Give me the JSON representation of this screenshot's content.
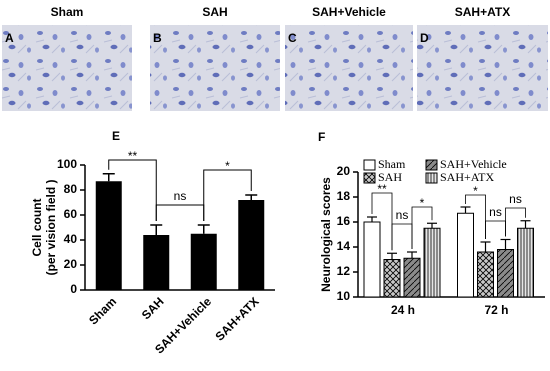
{
  "micrographs": [
    {
      "letter": "A",
      "title": "Sham"
    },
    {
      "letter": "B",
      "title": "SAH"
    },
    {
      "letter": "C",
      "title": "SAH+Vehicle"
    },
    {
      "letter": "D",
      "title": "SAH+ATX"
    }
  ],
  "chart_data": [
    {
      "type": "bar",
      "panel": "E",
      "ylabel": [
        "Cell count",
        "(per vision field )"
      ],
      "categories": [
        "Sham",
        "SAH",
        "SAH+Vehicle",
        "SAH+ATX"
      ],
      "values": [
        87,
        44,
        45,
        72
      ],
      "errors": [
        6,
        8,
        7,
        4
      ],
      "color": "#000000",
      "ylim": [
        0,
        100
      ],
      "yticks": [
        0,
        20,
        40,
        60,
        80,
        100
      ],
      "annotations": [
        "**",
        "ns",
        "*"
      ]
    },
    {
      "type": "grouped_bar",
      "panel": "F",
      "ylabel": "Neurological scores",
      "categories": [
        "24 h",
        "72 h"
      ],
      "series": [
        {
          "name": "Sham",
          "color": "#ffffff",
          "values": [
            16.0,
            16.7
          ],
          "errors": [
            0.4,
            0.5
          ]
        },
        {
          "name": "SAH",
          "color": "#c8c8c8",
          "values": [
            13.0,
            13.6
          ],
          "errors": [
            0.5,
            0.8
          ]
        },
        {
          "name": "SAH+Vehicle",
          "color": "#8a8a8a",
          "values": [
            13.1,
            13.8
          ],
          "errors": [
            0.5,
            0.8
          ]
        },
        {
          "name": "SAH+ATX",
          "color": "#e6e6e6",
          "values": [
            15.5,
            15.5
          ],
          "errors": [
            0.4,
            0.6
          ]
        }
      ],
      "ylim": [
        10,
        20
      ],
      "yticks": [
        10,
        12,
        14,
        16,
        18,
        20
      ],
      "annotations": [
        [
          "**",
          "ns",
          "*"
        ],
        [
          "*",
          "ns",
          "ns"
        ]
      ]
    }
  ]
}
